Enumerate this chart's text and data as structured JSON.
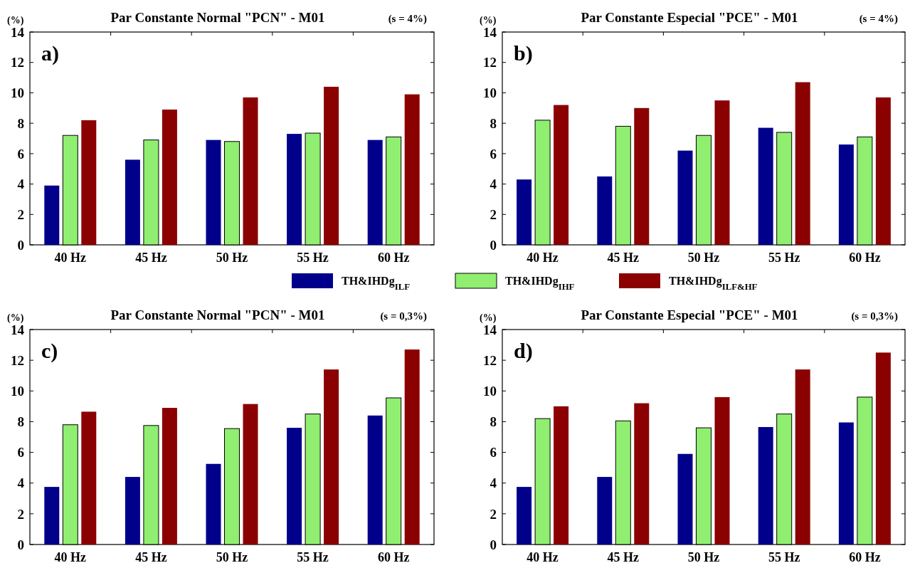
{
  "chart_data": [
    {
      "type": "bar",
      "title": "Par Constante Normal \"PCN\" - M01",
      "subtitle": "(s = 4%)",
      "ylabel": "(%)",
      "annotations": [
        "a)"
      ],
      "categories": [
        "40 Hz",
        "45 Hz",
        "50 Hz",
        "55 Hz",
        "60 Hz"
      ],
      "ylim": [
        0,
        14
      ],
      "yticks": [
        0,
        2,
        4,
        6,
        8,
        10,
        12,
        14
      ],
      "legend": "bottom",
      "series": [
        {
          "name": "TH&IHDg$_{ILF}$",
          "color": "#00008b",
          "values": [
            3.9,
            5.6,
            6.9,
            7.3,
            6.9
          ]
        },
        {
          "name": "TH&IHDg$_{IHF}$",
          "color": "#90ee70",
          "values": [
            7.2,
            6.9,
            6.8,
            7.35,
            7.1
          ]
        },
        {
          "name": "TH&IHDg$_{ILF&HF}$",
          "color": "#8b0000",
          "values": [
            8.2,
            8.9,
            9.7,
            10.4,
            9.9
          ]
        }
      ]
    },
    {
      "type": "bar",
      "title": "Par Constante Especial \"PCE\" - M01",
      "subtitle": "(s = 4%)",
      "ylabel": "(%)",
      "annotations": [
        "b)"
      ],
      "categories": [
        "40 Hz",
        "45 Hz",
        "50 Hz",
        "55 Hz",
        "60 Hz"
      ],
      "ylim": [
        0,
        14
      ],
      "yticks": [
        0,
        2,
        4,
        6,
        8,
        10,
        12,
        14
      ],
      "series": [
        {
          "color": "#00008b",
          "values": [
            4.3,
            4.5,
            6.2,
            7.7,
            6.6
          ]
        },
        {
          "color": "#90ee70",
          "values": [
            8.2,
            7.8,
            7.2,
            7.4,
            7.1
          ]
        },
        {
          "color": "#8b0000",
          "values": [
            9.2,
            9.0,
            9.5,
            10.7,
            9.7
          ]
        }
      ]
    },
    {
      "type": "bar",
      "title": "Par Constante Normal \"PCN\" - M01",
      "subtitle": "(s = 0,3%)",
      "ylabel": "(%)",
      "annotations": [
        "c)"
      ],
      "categories": [
        "40 Hz",
        "45 Hz",
        "50 Hz",
        "55 Hz",
        "60 Hz"
      ],
      "ylim": [
        0,
        14
      ],
      "yticks": [
        0,
        2,
        4,
        6,
        8,
        10,
        12,
        14
      ],
      "series": [
        {
          "color": "#00008b",
          "values": [
            3.75,
            4.4,
            5.25,
            7.6,
            8.4
          ]
        },
        {
          "color": "#90ee70",
          "values": [
            7.8,
            7.75,
            7.55,
            8.5,
            9.55
          ]
        },
        {
          "color": "#8b0000",
          "values": [
            8.65,
            8.9,
            9.15,
            11.4,
            12.7
          ]
        }
      ]
    },
    {
      "type": "bar",
      "title": "Par Constante Especial \"PCE\" - M01",
      "subtitle": "(s = 0,3%)",
      "ylabel": "(%)",
      "annotations": [
        "d)"
      ],
      "categories": [
        "40 Hz",
        "45 Hz",
        "50 Hz",
        "55 Hz",
        "60 Hz"
      ],
      "ylim": [
        0,
        14
      ],
      "yticks": [
        0,
        2,
        4,
        6,
        8,
        10,
        12,
        14
      ],
      "series": [
        {
          "color": "#00008b",
          "values": [
            3.75,
            4.4,
            5.9,
            7.65,
            7.95
          ]
        },
        {
          "color": "#90ee70",
          "values": [
            8.2,
            8.05,
            7.6,
            8.5,
            9.6
          ]
        },
        {
          "color": "#8b0000",
          "values": [
            9.0,
            9.2,
            9.6,
            11.4,
            12.5
          ]
        }
      ]
    }
  ]
}
